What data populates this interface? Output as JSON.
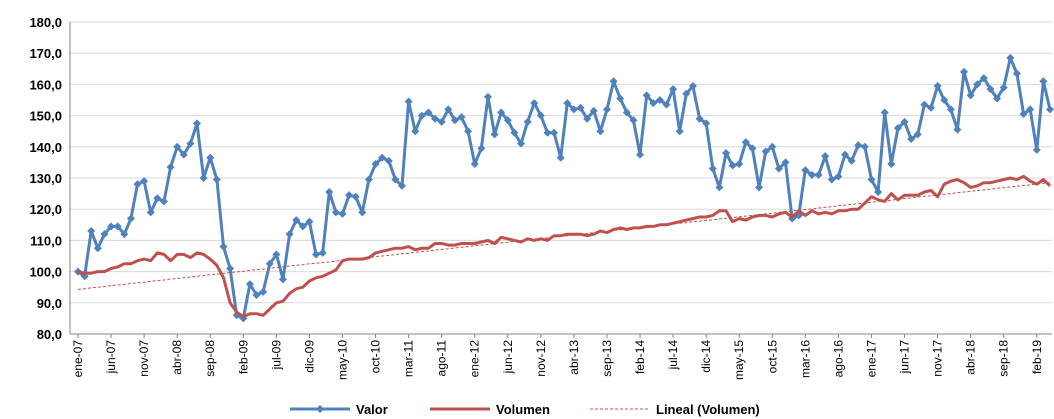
{
  "chart_data": {
    "type": "line",
    "categories": [
      "ene-07",
      null,
      null,
      null,
      null,
      "jun-07",
      null,
      null,
      null,
      null,
      "nov-07",
      null,
      null,
      null,
      null,
      "abr-08",
      null,
      null,
      null,
      null,
      "sep-08",
      null,
      null,
      null,
      null,
      "feb-09",
      null,
      null,
      null,
      null,
      "jul-09",
      null,
      null,
      null,
      null,
      "dic-09",
      null,
      null,
      null,
      null,
      "may-10",
      null,
      null,
      null,
      null,
      "oct-10",
      null,
      null,
      null,
      null,
      "mar-11",
      null,
      null,
      null,
      null,
      "ago-11",
      null,
      null,
      null,
      null,
      "ene-12",
      null,
      null,
      null,
      null,
      "jun-12",
      null,
      null,
      null,
      null,
      "nov-12",
      null,
      null,
      null,
      null,
      "abr-13",
      null,
      null,
      null,
      null,
      "sep-13",
      null,
      null,
      null,
      null,
      "feb-14",
      null,
      null,
      null,
      null,
      "jul-14",
      null,
      null,
      null,
      null,
      "dic-14",
      null,
      null,
      null,
      null,
      "may-15",
      null,
      null,
      null,
      null,
      "oct-15",
      null,
      null,
      null,
      null,
      "mar-16",
      null,
      null,
      null,
      null,
      "ago-16",
      null,
      null,
      null,
      null,
      "ene-17",
      null,
      null,
      null,
      null,
      "jun-17",
      null,
      null,
      null,
      null,
      "nov-17",
      null,
      null,
      null,
      null,
      "abr-18",
      null,
      null,
      null,
      null,
      "sep-18",
      null,
      null,
      null,
      null,
      "feb-19",
      null,
      null
    ],
    "series": [
      {
        "name": "Valor",
        "color": "#4f81bd",
        "marker": "diamond",
        "values": [
          100,
          98.5,
          113,
          107.5,
          112,
          114.5,
          114.5,
          112,
          117,
          128,
          129,
          119,
          123.5,
          122.5,
          133.5,
          140,
          137.5,
          141,
          147.5,
          130,
          136.5,
          129.5,
          108,
          101,
          86,
          85,
          96,
          92.5,
          93.5,
          102.5,
          105.5,
          97.5,
          112,
          116.5,
          114.5,
          116,
          105.5,
          106,
          125.5,
          119,
          118.5,
          124.5,
          124,
          119,
          129.5,
          134.5,
          136.5,
          135.5,
          129.5,
          127.5,
          154.5,
          145,
          150,
          151,
          149,
          148,
          152,
          148.5,
          149.5,
          145,
          134.5,
          139.5,
          156,
          144,
          151,
          148.5,
          144.5,
          141,
          148,
          154,
          150,
          144.5,
          144.5,
          136.5,
          154,
          152,
          152.5,
          149,
          151.5,
          145,
          152,
          161,
          155.5,
          151,
          148.5,
          137.5,
          156.5,
          154,
          155,
          153.5,
          158.5,
          145,
          157,
          159.5,
          149,
          147.5,
          133,
          127,
          138,
          134,
          134.5,
          141.5,
          139.5,
          127,
          138.5,
          140,
          133,
          135,
          117,
          118,
          132.5,
          131,
          131,
          137,
          129.5,
          130.5,
          137.5,
          135.5,
          140.5,
          140,
          129.5,
          125.5,
          151,
          134.5,
          146,
          148,
          142.5,
          144,
          153.5,
          152.5,
          159.5,
          155,
          152,
          145.5,
          164,
          156.5,
          160,
          162,
          158.5,
          155.5,
          159,
          168.5,
          163.5,
          150.5,
          152,
          139,
          161,
          152
        ]
      },
      {
        "name": "Volumen",
        "color": "#c0504d",
        "values": [
          100,
          99.5,
          99.5,
          100,
          100,
          101,
          101.5,
          102.5,
          102.5,
          103.5,
          104,
          103.5,
          106,
          105.5,
          103.5,
          105.5,
          105.5,
          104.5,
          106,
          105.5,
          104,
          102,
          98,
          90,
          87,
          85.5,
          86.5,
          86.5,
          86,
          88,
          90,
          90.5,
          93,
          94.5,
          95,
          97,
          98,
          98.5,
          99.5,
          100.5,
          103.5,
          104,
          104,
          104,
          104.5,
          106,
          106.5,
          107,
          107.5,
          107.5,
          108,
          107,
          107.5,
          107.5,
          109,
          109,
          108.5,
          108.5,
          109,
          109,
          109,
          109.5,
          110,
          109,
          111,
          110.5,
          110,
          109.5,
          110.5,
          110,
          110.5,
          110,
          111.5,
          111.5,
          112,
          112,
          112,
          111.5,
          112,
          113,
          112.5,
          113.5,
          114,
          113.5,
          114,
          114,
          114.5,
          114.5,
          115,
          115,
          115.5,
          116,
          116.5,
          117,
          117.5,
          117.5,
          118,
          119.5,
          119.5,
          116,
          117,
          116.5,
          117.5,
          118,
          118,
          117.5,
          118.5,
          119,
          117.5,
          119.5,
          118,
          119.5,
          118.5,
          119,
          118.5,
          119.5,
          119.5,
          120,
          120,
          122,
          124,
          123,
          122.5,
          125,
          123,
          124.5,
          124.5,
          124.5,
          125.5,
          126,
          124,
          128,
          129,
          129.5,
          128.5,
          127,
          127.5,
          128.5,
          128.5,
          129,
          129.5,
          130,
          129.5,
          130.5,
          129,
          128,
          129.5,
          127.5
        ]
      },
      {
        "name": "Lineal (Volumen)",
        "color": "#c0504d",
        "dashed": true,
        "values": [
          94.3,
          94.5,
          94.8,
          95.0,
          95.2,
          95.5,
          95.7,
          95.9,
          96.2,
          96.4,
          96.6,
          96.9,
          97.1,
          97.3,
          97.6,
          97.8,
          98.0,
          98.3,
          98.5,
          98.7,
          99.0,
          99.2,
          99.4,
          99.7,
          99.9,
          100.1,
          100.4,
          100.6,
          100.8,
          101.1,
          101.3,
          101.5,
          101.8,
          102.0,
          102.2,
          102.5,
          102.7,
          102.9,
          103.1,
          103.4,
          103.6,
          103.8,
          104.1,
          104.3,
          104.5,
          104.8,
          105.0,
          105.2,
          105.5,
          105.7,
          105.9,
          106.2,
          106.4,
          106.6,
          106.9,
          107.1,
          107.3,
          107.6,
          107.8,
          108.0,
          108.3,
          108.5,
          108.7,
          109.0,
          109.2,
          109.4,
          109.7,
          109.9,
          110.1,
          110.4,
          110.6,
          110.8,
          111.1,
          111.3,
          111.5,
          111.8,
          112.0,
          112.2,
          112.5,
          112.7,
          112.9,
          113.2,
          113.4,
          113.6,
          113.9,
          114.1,
          114.3,
          114.6,
          114.8,
          115.0,
          115.3,
          115.5,
          115.7,
          116.0,
          116.2,
          116.4,
          116.6,
          116.9,
          117.1,
          117.3,
          117.6,
          117.8,
          118.0,
          118.3,
          118.5,
          118.7,
          119.0,
          119.2,
          119.4,
          119.7,
          119.9,
          120.1,
          120.4,
          120.6,
          120.8,
          121.1,
          121.3,
          121.5,
          121.8,
          122.0,
          122.2,
          122.5,
          122.7,
          122.9,
          123.2,
          123.4,
          123.6,
          123.9,
          124.1,
          124.3,
          124.6,
          124.8,
          125.0,
          125.3,
          125.5,
          125.7,
          126.0,
          126.2,
          126.4,
          126.7,
          126.9,
          127.1,
          127.4,
          127.6,
          127.8,
          128.1,
          128.3,
          128.5
        ]
      }
    ],
    "ylim": [
      80,
      180
    ],
    "yticks": [
      {
        "value": 80,
        "label": "80,0"
      },
      {
        "value": 90,
        "label": "90,0"
      },
      {
        "value": 100,
        "label": "100,0"
      },
      {
        "value": 110,
        "label": "110,0"
      },
      {
        "value": 120,
        "label": "120,0"
      },
      {
        "value": 130,
        "label": "130,0"
      },
      {
        "value": 140,
        "label": "140,0"
      },
      {
        "value": 150,
        "label": "150,0"
      },
      {
        "value": 160,
        "label": "160,0"
      },
      {
        "value": 170,
        "label": "170,0"
      },
      {
        "value": 180,
        "label": "180,0"
      }
    ],
    "grid": true,
    "legend": "bottom"
  }
}
